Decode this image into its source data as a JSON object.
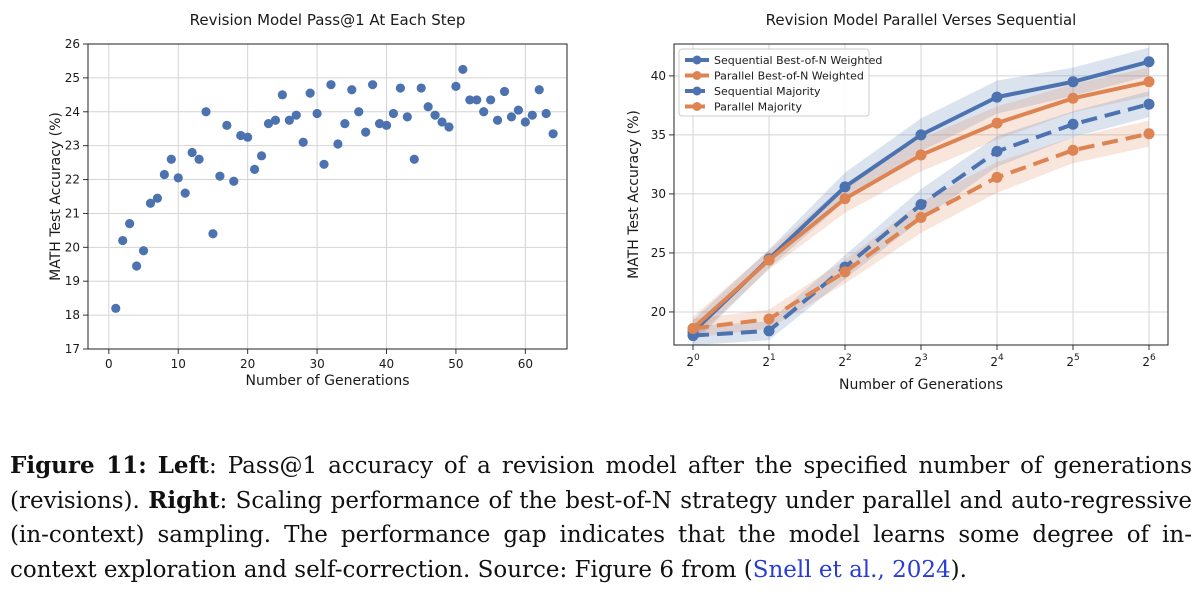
{
  "chart_data": [
    {
      "type": "scatter",
      "title": "Revision Model Pass@1 At Each Step",
      "xlabel": "Number of Generations",
      "ylabel": "MATH Test Accuracy (%)",
      "xlim": [
        -3,
        66
      ],
      "ylim": [
        17,
        26
      ],
      "xticks": [
        0,
        10,
        20,
        30,
        40,
        50,
        60
      ],
      "yticks": [
        17,
        18,
        19,
        20,
        21,
        22,
        23,
        24,
        25,
        26
      ],
      "grid": true,
      "color": "#4c72b0",
      "x": [
        1,
        2,
        3,
        4,
        5,
        6,
        7,
        8,
        9,
        10,
        11,
        12,
        13,
        14,
        15,
        16,
        17,
        18,
        19,
        20,
        21,
        22,
        23,
        24,
        25,
        26,
        27,
        28,
        29,
        30,
        31,
        32,
        33,
        34,
        35,
        36,
        37,
        38,
        39,
        40,
        41,
        42,
        43,
        44,
        45,
        46,
        47,
        48,
        49,
        50,
        51,
        52,
        53,
        54,
        55,
        56,
        57,
        58,
        59,
        60,
        61,
        62,
        63,
        64
      ],
      "y": [
        18.2,
        20.2,
        20.7,
        19.45,
        19.9,
        21.3,
        21.45,
        22.15,
        22.6,
        22.05,
        21.6,
        22.8,
        22.6,
        24.0,
        20.4,
        22.1,
        23.6,
        21.95,
        23.3,
        23.25,
        22.3,
        22.7,
        23.65,
        23.75,
        24.5,
        23.75,
        23.9,
        23.1,
        24.55,
        23.95,
        22.45,
        24.8,
        23.05,
        23.65,
        24.65,
        24.0,
        23.4,
        24.8,
        23.65,
        23.6,
        23.95,
        24.7,
        23.85,
        22.6,
        24.7,
        24.15,
        23.9,
        23.7,
        23.55,
        24.75,
        25.25,
        24.35,
        24.35,
        24.0,
        24.35,
        23.75,
        24.6,
        23.85,
        24.05,
        23.7,
        23.9,
        24.65,
        23.95,
        23.35
      ]
    },
    {
      "type": "line",
      "title": "Revision Model Parallel Verses Sequential",
      "xlabel": "Number of Generations",
      "ylabel": "MATH Test Accuracy (%)",
      "x": [
        0,
        1,
        2,
        3,
        4,
        5,
        6
      ],
      "xtick_base": "2",
      "xtick_exponents": [
        "0",
        "1",
        "2",
        "3",
        "4",
        "5",
        "6"
      ],
      "yticks": [
        20,
        25,
        30,
        35,
        40
      ],
      "ylim": [
        17.2,
        42.7
      ],
      "grid": true,
      "legend_position": "top-left",
      "series": [
        {
          "name": "Sequential Best-of-N Weighted",
          "color": "#4c72b0",
          "dashed": false,
          "values": [
            18.3,
            24.5,
            30.6,
            35.0,
            38.2,
            39.5,
            41.2
          ],
          "band": [
            1.0,
            0.8,
            1.2,
            1.4,
            1.4,
            1.2,
            1.2
          ]
        },
        {
          "name": "Parallel Best-of-N Weighted",
          "color": "#dd8452",
          "dashed": false,
          "values": [
            18.6,
            24.4,
            29.6,
            33.3,
            36.0,
            38.1,
            39.5
          ],
          "band": [
            1.0,
            0.8,
            1.2,
            1.4,
            1.4,
            1.2,
            1.2
          ]
        },
        {
          "name": "Sequential Majority",
          "color": "#4c72b0",
          "dashed": true,
          "values": [
            18.0,
            18.4,
            23.8,
            29.1,
            33.6,
            35.9,
            37.6
          ],
          "band": [
            0.8,
            0.8,
            1.0,
            1.3,
            1.3,
            1.1,
            1.1
          ]
        },
        {
          "name": "Parallel Majority",
          "color": "#dd8452",
          "dashed": true,
          "values": [
            18.6,
            19.4,
            23.4,
            28.0,
            31.4,
            33.7,
            35.1
          ],
          "band": [
            0.8,
            0.8,
            1.0,
            1.3,
            1.3,
            1.1,
            1.1
          ]
        }
      ]
    }
  ],
  "caption": {
    "label": "Figure 11:",
    "left_label": "Left",
    "left_text": ": Pass@1 accuracy of a revision model after the specified number of generations (revisions).",
    "right_label": "Right",
    "right_text": ": Scaling performance of the best-of-N strategy under parallel and auto-regressive (in-context) sampling. The performance gap indicates that the model learns some degree of in-context exploration and self-correction. Source: Figure 6 from (",
    "cite_text": "Snell et al., 2024",
    "end_text": ")."
  }
}
